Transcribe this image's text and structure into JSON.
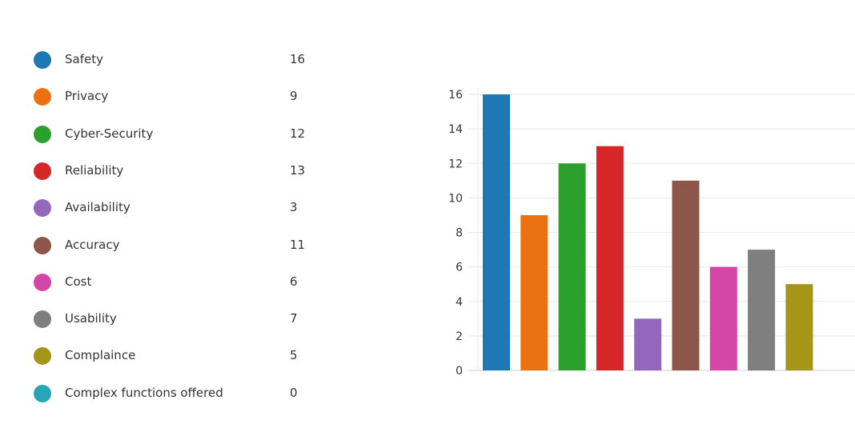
{
  "chart_data": {
    "type": "bar",
    "categories": [
      "Safety",
      "Privacy",
      "Cyber-Security",
      "Reliability",
      "Availability",
      "Accuracy",
      "Cost",
      "Usability",
      "Complaince",
      "Complex functions offered"
    ],
    "values": [
      16,
      9,
      12,
      13,
      3,
      11,
      6,
      7,
      5,
      0
    ],
    "colors": [
      "#1f77b4",
      "#ec7211",
      "#2ca02c",
      "#d62728",
      "#9467bd",
      "#8c564b",
      "#d546a8",
      "#7f7f7f",
      "#a59518",
      "#28a6b8"
    ],
    "ylim": [
      0,
      16
    ],
    "yticks": [
      0,
      2,
      4,
      6,
      8,
      10,
      12,
      14,
      16
    ],
    "grid": true,
    "legend": "left",
    "title": "",
    "xlabel": "",
    "ylabel": ""
  }
}
